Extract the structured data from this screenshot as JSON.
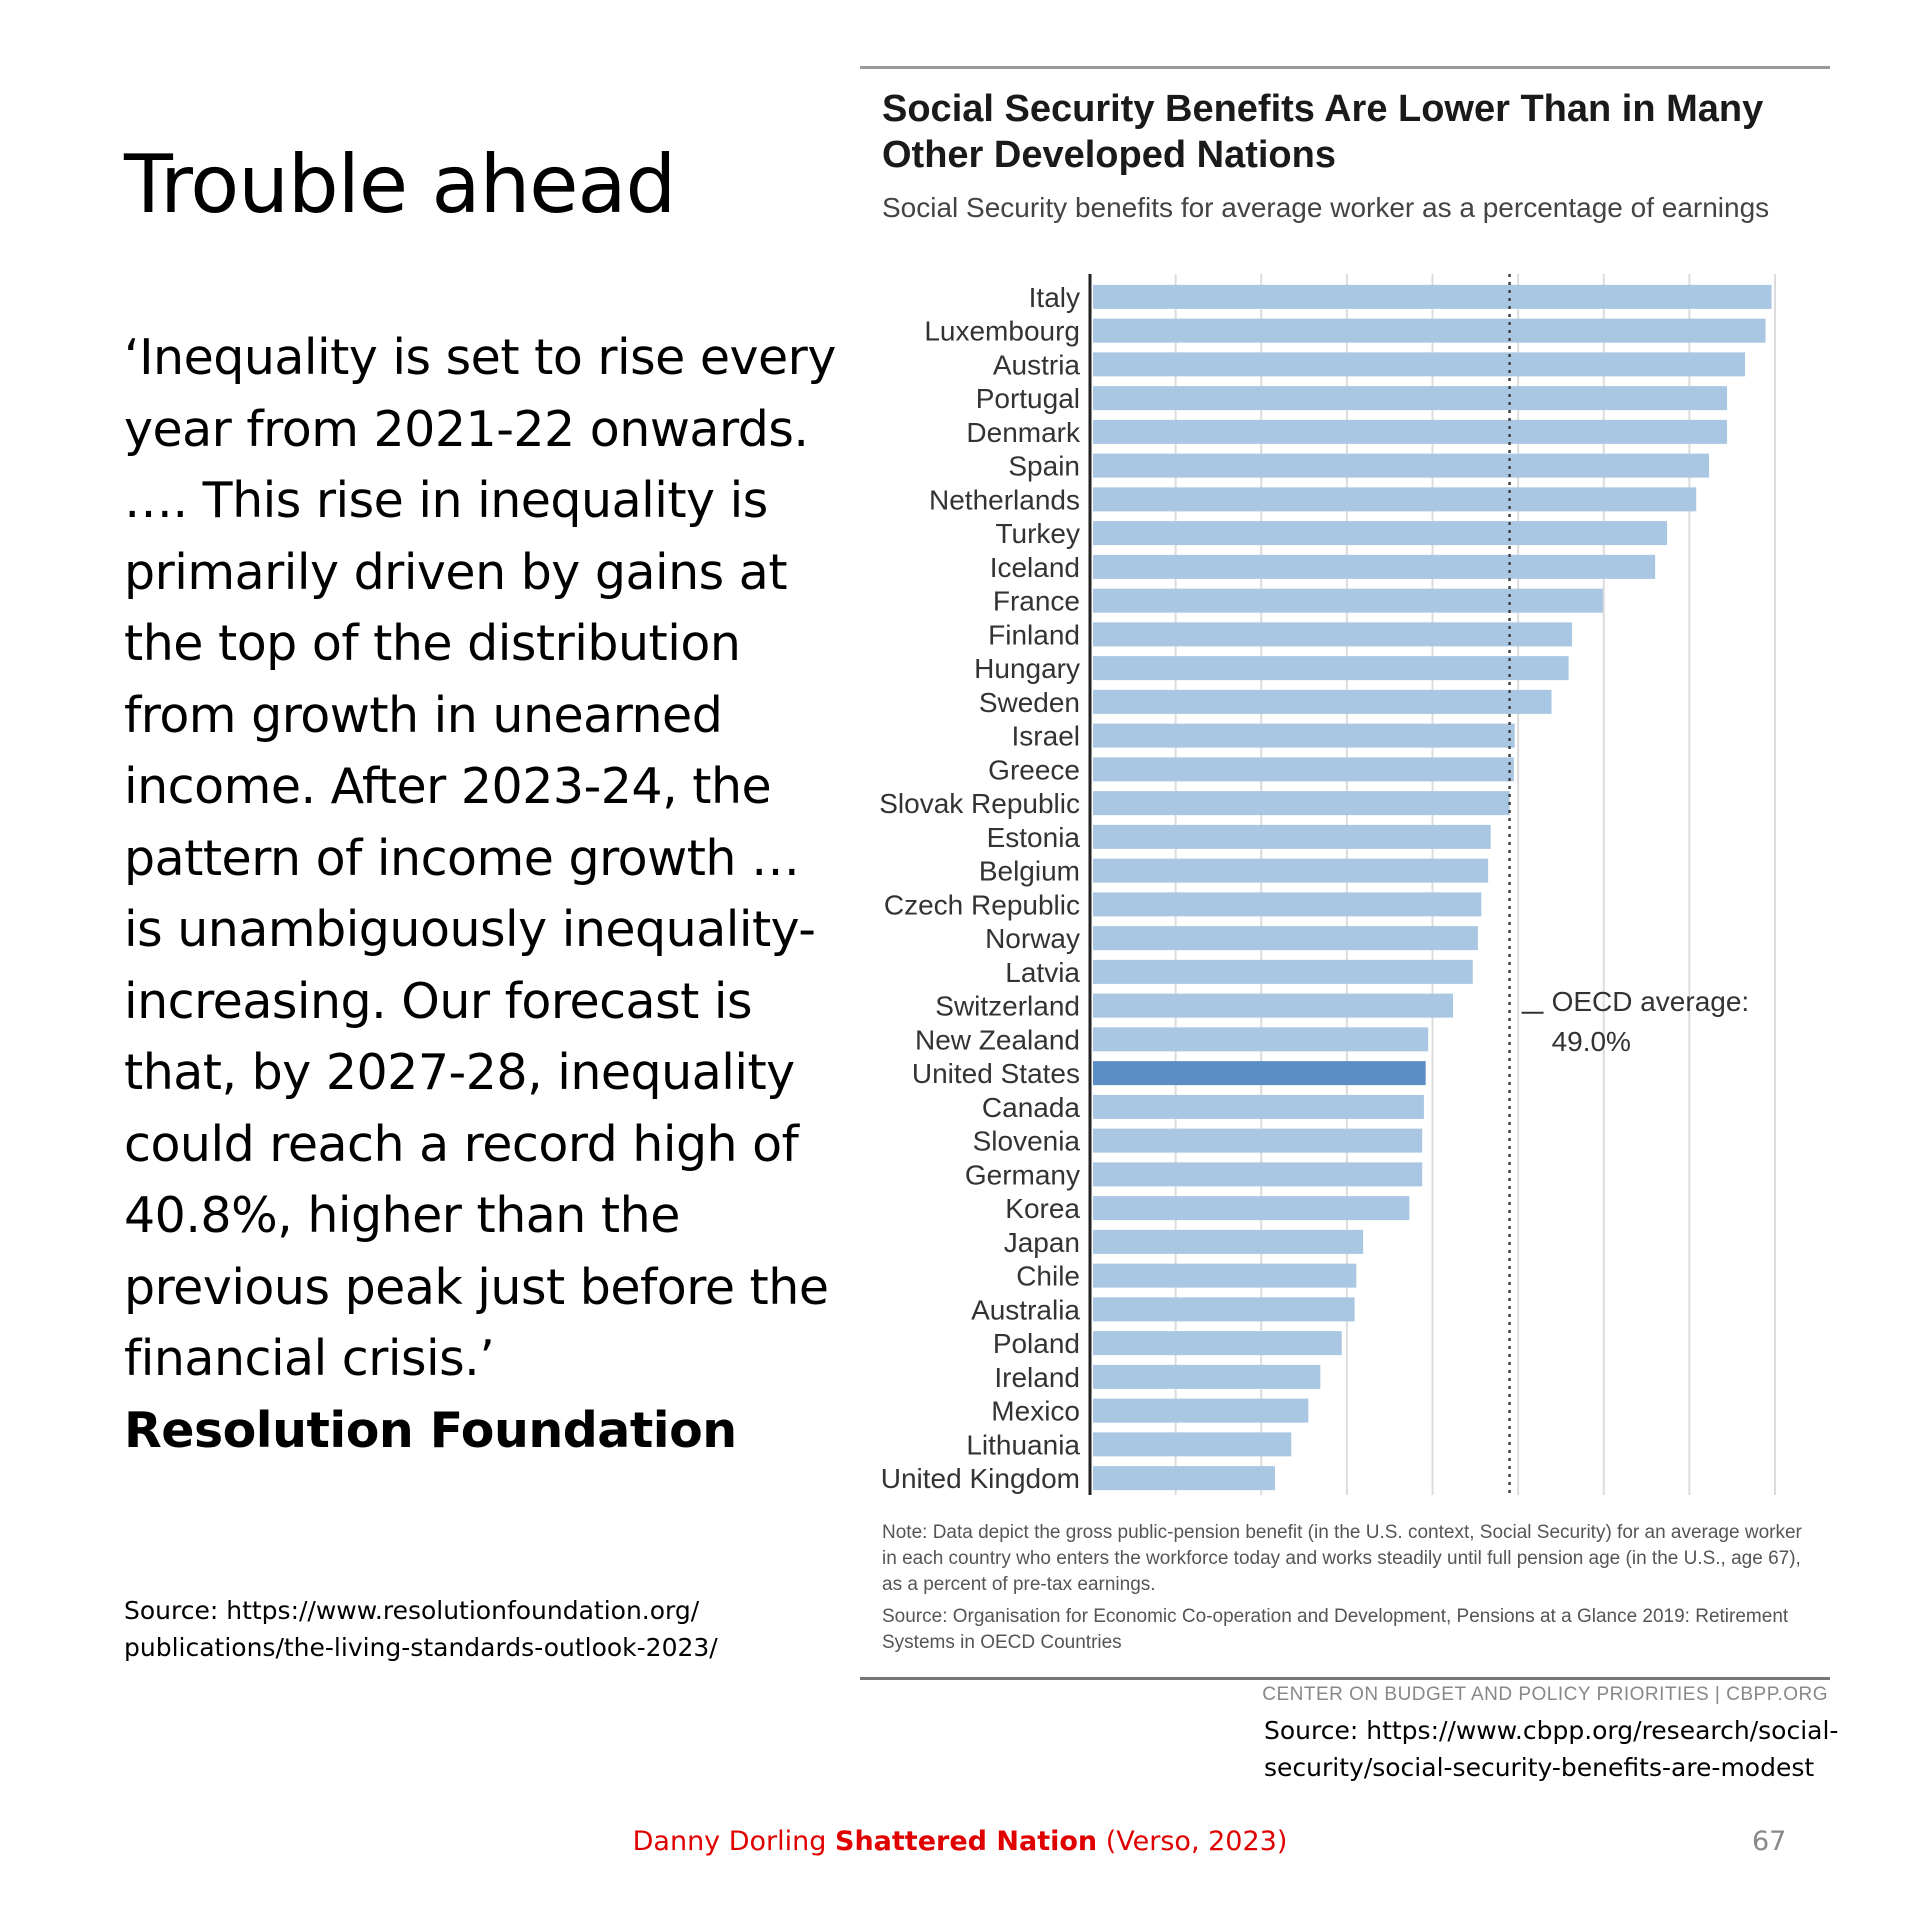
{
  "slide": {
    "title": "Trouble ahead",
    "quote": "‘Inequality is set to rise every year from 2021-22 onwards. …. This rise in inequality is primarily driven by gains at the top of the distribution from growth in unearned income. After 2023-24, the pattern of income growth … is unambiguously inequality-increasing. Our forecast is that, by 2027-28, inequality could reach a record high of 40.8%, higher than the previous peak just before the financial crisis.’",
    "quote_attribution": "Resolution Foundation",
    "source_left": "Source: https://www.resolutionfoundation.org/ publications/the-living-standards-outlook-2023/",
    "source_right": "Source: https://www.cbpp.org/research/social-security/social-security-benefits-are-modest",
    "footer_author": "Danny Dorling",
    "footer_book": "Shattered Nation",
    "footer_publisher": "(Verso, 2023)",
    "page_number": "67"
  },
  "chart_text": {
    "note": "Note: Data depict the gross public-pension benefit (in the U.S. context, Social Security) for an average worker in each country who enters the workforce today and works steadily until full pension age (in the U.S., age 67), as a percent of pre-tax earnings.",
    "source": "Source: Organisation for Economic Co-operation and Development, Pensions at a Glance 2019: Retirement Systems in OECD Countries",
    "credit": "CENTER ON BUDGET AND POLICY PRIORITIES | CBPP.ORG",
    "oecd_label": "OECD average:",
    "oecd_value": "49.0%"
  },
  "chart_data": {
    "type": "bar",
    "orientation": "horizontal",
    "title": "Social Security Benefits Are Lower Than in Many Other Developed Nations",
    "subtitle": "Social Security benefits for average worker as a percentage of earnings",
    "xlim": [
      0,
      80
    ],
    "grid": true,
    "highlight": "United States",
    "bar_color": "#a9c6e3",
    "highlight_color": "#5b8fc4",
    "reference_line": {
      "value": 49.0,
      "label": "OECD average: 49.0%"
    },
    "categories": [
      "Italy",
      "Luxembourg",
      "Austria",
      "Portugal",
      "Denmark",
      "Spain",
      "Netherlands",
      "Turkey",
      "Iceland",
      "France",
      "Finland",
      "Hungary",
      "Sweden",
      "Israel",
      "Greece",
      "Slovak Republic",
      "Estonia",
      "Belgium",
      "Czech Republic",
      "Norway",
      "Latvia",
      "Switzerland",
      "New Zealand",
      "United States",
      "Canada",
      "Slovenia",
      "Germany",
      "Korea",
      "Japan",
      "Chile",
      "Australia",
      "Poland",
      "Ireland",
      "Mexico",
      "Lithuania",
      "United Kingdom"
    ],
    "values": [
      79.6,
      78.9,
      76.5,
      74.4,
      74.4,
      72.3,
      70.8,
      67.4,
      66.0,
      59.9,
      56.3,
      55.9,
      53.9,
      49.6,
      49.5,
      49.0,
      46.8,
      46.5,
      45.7,
      45.3,
      44.7,
      42.4,
      39.5,
      39.2,
      39.0,
      38.8,
      38.8,
      37.3,
      31.9,
      31.1,
      30.9,
      29.4,
      26.9,
      25.5,
      23.5,
      21.6
    ]
  }
}
